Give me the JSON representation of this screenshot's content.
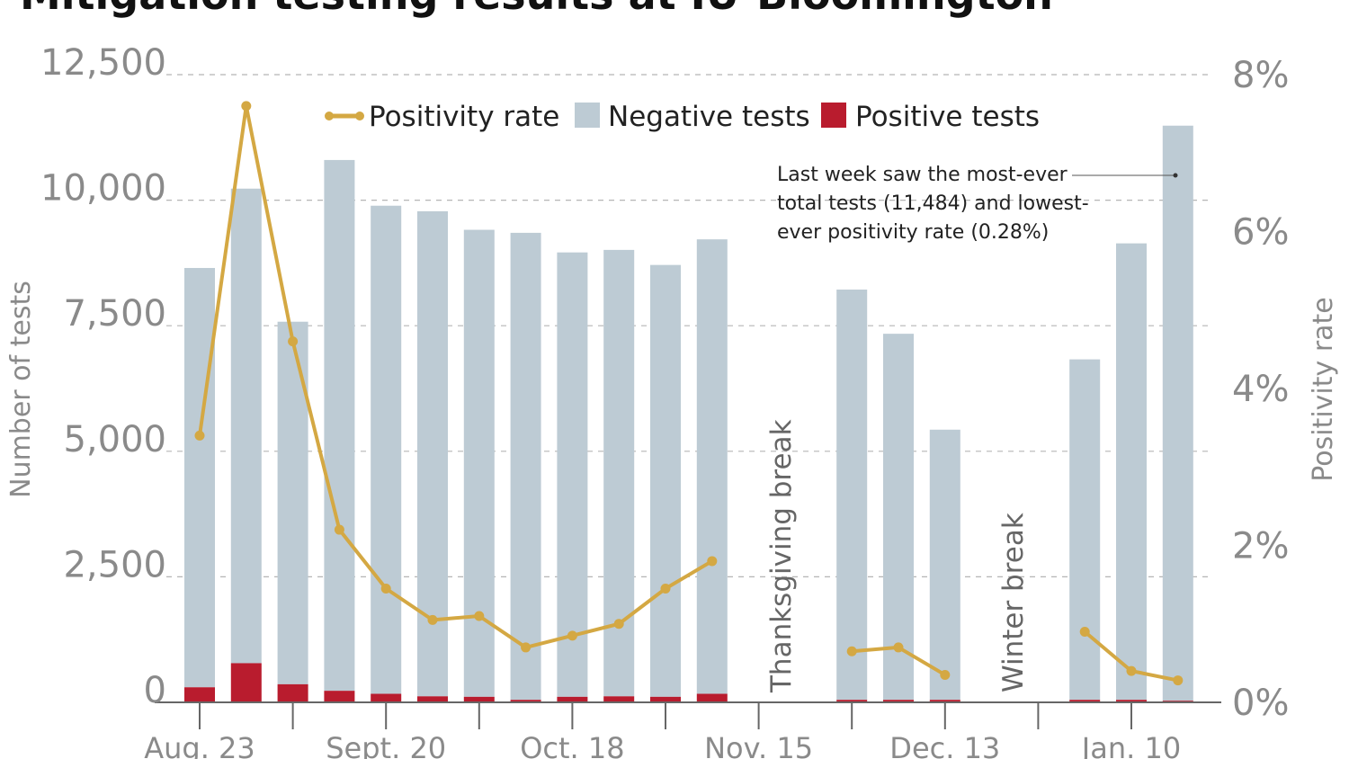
{
  "chart_data": {
    "type": "bar",
    "title": "Mitigation testing results at IU-Bloomington",
    "ylabel": "Number of tests",
    "y2label": "Positivity rate",
    "ylim": [
      0,
      12500
    ],
    "y2lim": [
      0,
      8
    ],
    "yticks": [
      "0",
      "2,500",
      "5,000",
      "7,500",
      "10,000",
      "12,500"
    ],
    "y2ticks": [
      "0%",
      "2%",
      "4%",
      "6%",
      "8%"
    ],
    "xtick_labels": [
      "Aug. 23",
      "Sept. 20",
      "Oct. 18",
      "Nov. 15",
      "Dec. 13",
      "Jan. 10"
    ],
    "legend": [
      "Positivity rate",
      "Negative tests",
      "Positive tests"
    ],
    "weeks": [
      {
        "slot": 0,
        "negative": 8350,
        "positive": 300,
        "rate": 3.4
      },
      {
        "slot": 1,
        "negative": 9450,
        "positive": 780,
        "rate": 7.6
      },
      {
        "slot": 2,
        "negative": 7220,
        "positive": 360,
        "rate": 4.6
      },
      {
        "slot": 3,
        "negative": 10570,
        "positive": 230,
        "rate": 2.2
      },
      {
        "slot": 4,
        "negative": 9720,
        "positive": 170,
        "rate": 1.45
      },
      {
        "slot": 5,
        "negative": 9660,
        "positive": 120,
        "rate": 1.05
      },
      {
        "slot": 6,
        "negative": 9300,
        "positive": 110,
        "rate": 1.1
      },
      {
        "slot": 7,
        "negative": 9300,
        "positive": 50,
        "rate": 0.7
      },
      {
        "slot": 8,
        "negative": 8850,
        "positive": 110,
        "rate": 0.85
      },
      {
        "slot": 9,
        "negative": 8890,
        "positive": 120,
        "rate": 1.0
      },
      {
        "slot": 10,
        "negative": 8600,
        "positive": 110,
        "rate": 1.45
      },
      {
        "slot": 11,
        "negative": 9050,
        "positive": 170,
        "rate": 1.8
      },
      {
        "slot": 14,
        "negative": 8170,
        "positive": 50,
        "rate": 0.65
      },
      {
        "slot": 15,
        "negative": 7290,
        "positive": 50,
        "rate": 0.7
      },
      {
        "slot": 16,
        "negative": 5380,
        "positive": 50,
        "rate": 0.35
      },
      {
        "slot": 19,
        "negative": 6780,
        "positive": 50,
        "rate": 0.9
      },
      {
        "slot": 20,
        "negative": 9090,
        "positive": 50,
        "rate": 0.4
      },
      {
        "slot": 21,
        "negative": 11452,
        "positive": 32,
        "rate": 0.28
      }
    ],
    "annotations": {
      "thanksgiving": "Thanksgiving break",
      "winter": "Winter break",
      "note_line1": "Last week saw the most-ever",
      "note_line2": "total tests (11,484) and lowest-",
      "note_line3": "ever positivity rate (0.28%)"
    },
    "colors": {
      "negative": "#bdcbd4",
      "positive": "#b91c2e",
      "rate": "#d4a843",
      "axis_text": "#8a8a8a",
      "grid": "#b5b5b5"
    }
  }
}
